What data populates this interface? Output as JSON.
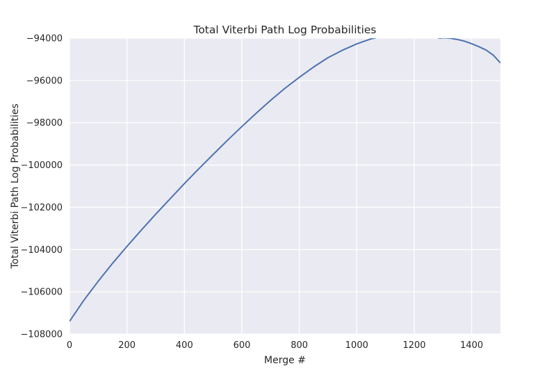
{
  "chart_data": {
    "type": "line",
    "title": "Total Viterbi Path Log Probabilities",
    "xlabel": "Merge #",
    "ylabel": "Total Viterbi Path Log Probabilities",
    "xlim": [
      0,
      1500
    ],
    "ylim": [
      -108000,
      -94000
    ],
    "xticks": [
      0,
      200,
      400,
      600,
      800,
      1000,
      1200,
      1400
    ],
    "yticks": [
      -108000,
      -106000,
      -104000,
      -102000,
      -100000,
      -98000,
      -96000,
      -94000
    ],
    "xtick_labels": [
      "0",
      "200",
      "400",
      "600",
      "800",
      "1000",
      "1200",
      "1400"
    ],
    "ytick_labels": [
      "−108000",
      "−106000",
      "−104000",
      "−102000",
      "−100000",
      "−98000",
      "−96000",
      "−94000"
    ],
    "grid": true,
    "background": "#eaeaf2",
    "grid_color": "#ffffff",
    "line_color": "#4c72b0",
    "series": [
      {
        "x": [
          0,
          50,
          100,
          150,
          200,
          250,
          300,
          350,
          400,
          450,
          500,
          550,
          600,
          650,
          700,
          750,
          800,
          850,
          900,
          950,
          1000,
          1050,
          1100,
          1150,
          1175,
          1200,
          1225,
          1250,
          1275,
          1290,
          1300,
          1325,
          1350,
          1375,
          1400,
          1425,
          1450,
          1475,
          1500
        ],
        "values": [
          -107400,
          -106400,
          -105500,
          -104650,
          -103850,
          -103080,
          -102330,
          -101600,
          -100880,
          -100180,
          -99500,
          -98830,
          -98180,
          -97550,
          -96940,
          -96370,
          -95850,
          -95360,
          -94920,
          -94570,
          -94270,
          -94030,
          -93870,
          -93780,
          -93760,
          -93780,
          -93830,
          -93880,
          -93950,
          -94000,
          -93980,
          -94000,
          -94060,
          -94140,
          -94260,
          -94400,
          -94560,
          -94800,
          -95170
        ]
      }
    ]
  }
}
